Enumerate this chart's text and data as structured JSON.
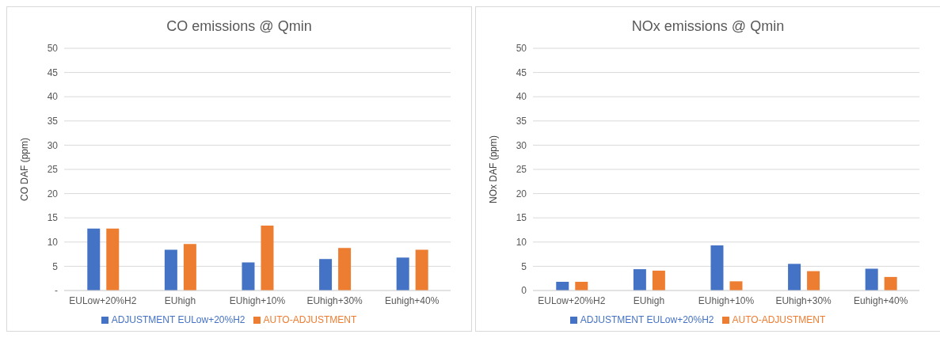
{
  "chart_data": [
    {
      "type": "bar",
      "title": "CO emissions @ Qmin",
      "ylabel": "CO DAF (ppm)",
      "categories": [
        "EULow+20%H2",
        "EUhigh",
        "EUhigh+10%",
        "EUhigh+30%",
        "Euhigh+40%"
      ],
      "series": [
        {
          "name": "ADJUSTMENT EULow+20%H2",
          "color": "#4472c4",
          "values": [
            12.8,
            8.4,
            5.8,
            6.5,
            6.8
          ]
        },
        {
          "name": "AUTO-ADJUSTMENT",
          "color": "#ed7d31",
          "values": [
            12.8,
            9.6,
            13.4,
            8.8,
            8.4
          ]
        }
      ],
      "ylim": [
        0,
        50
      ],
      "yticks": [
        {
          "value": 0,
          "label": "-"
        },
        5,
        10,
        15,
        20,
        25,
        30,
        35,
        40,
        45,
        50
      ],
      "grid": "y",
      "legend": "bottom"
    },
    {
      "type": "bar",
      "title": "NOx emissions @ Qmin",
      "ylabel": "NOx DAF (ppm)",
      "categories": [
        "EULow+20%H2",
        "EUhigh",
        "EUhigh+10%",
        "EUhigh+30%",
        "Euhigh+40%"
      ],
      "series": [
        {
          "name": "ADJUSTMENT EULow+20%H2",
          "color": "#4472c4",
          "values": [
            1.8,
            4.4,
            9.3,
            5.5,
            4.5
          ]
        },
        {
          "name": "AUTO-ADJUSTMENT",
          "color": "#ed7d31",
          "values": [
            1.8,
            4.1,
            1.9,
            4.0,
            2.8
          ]
        }
      ],
      "ylim": [
        0,
        50
      ],
      "yticks": [
        0,
        5,
        10,
        15,
        20,
        25,
        30,
        35,
        40,
        45,
        50
      ],
      "grid": "y",
      "legend": "bottom"
    }
  ]
}
